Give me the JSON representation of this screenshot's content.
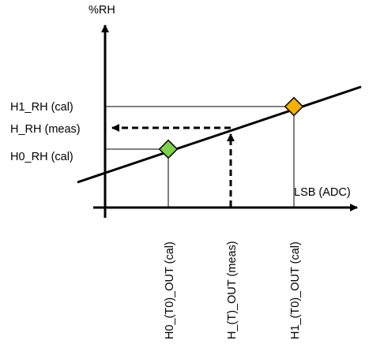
{
  "diagram": {
    "y_axis_label": "%RH",
    "x_axis_label": "LSB (ADC)",
    "y_labels": {
      "h1": "H1_RH (cal)",
      "h_meas": "H_RH (meas)",
      "h0": "H0_RH (cal)"
    },
    "x_labels": {
      "h0_out": "H0_(T0)_OUT (cal)",
      "h_out": "H_(T)_OUT (meas)",
      "h1_out": "H1_(T0)_OUT (cal)"
    },
    "markers": {
      "h0_color": "#7fd14a",
      "h1_color": "#f5b000"
    }
  }
}
